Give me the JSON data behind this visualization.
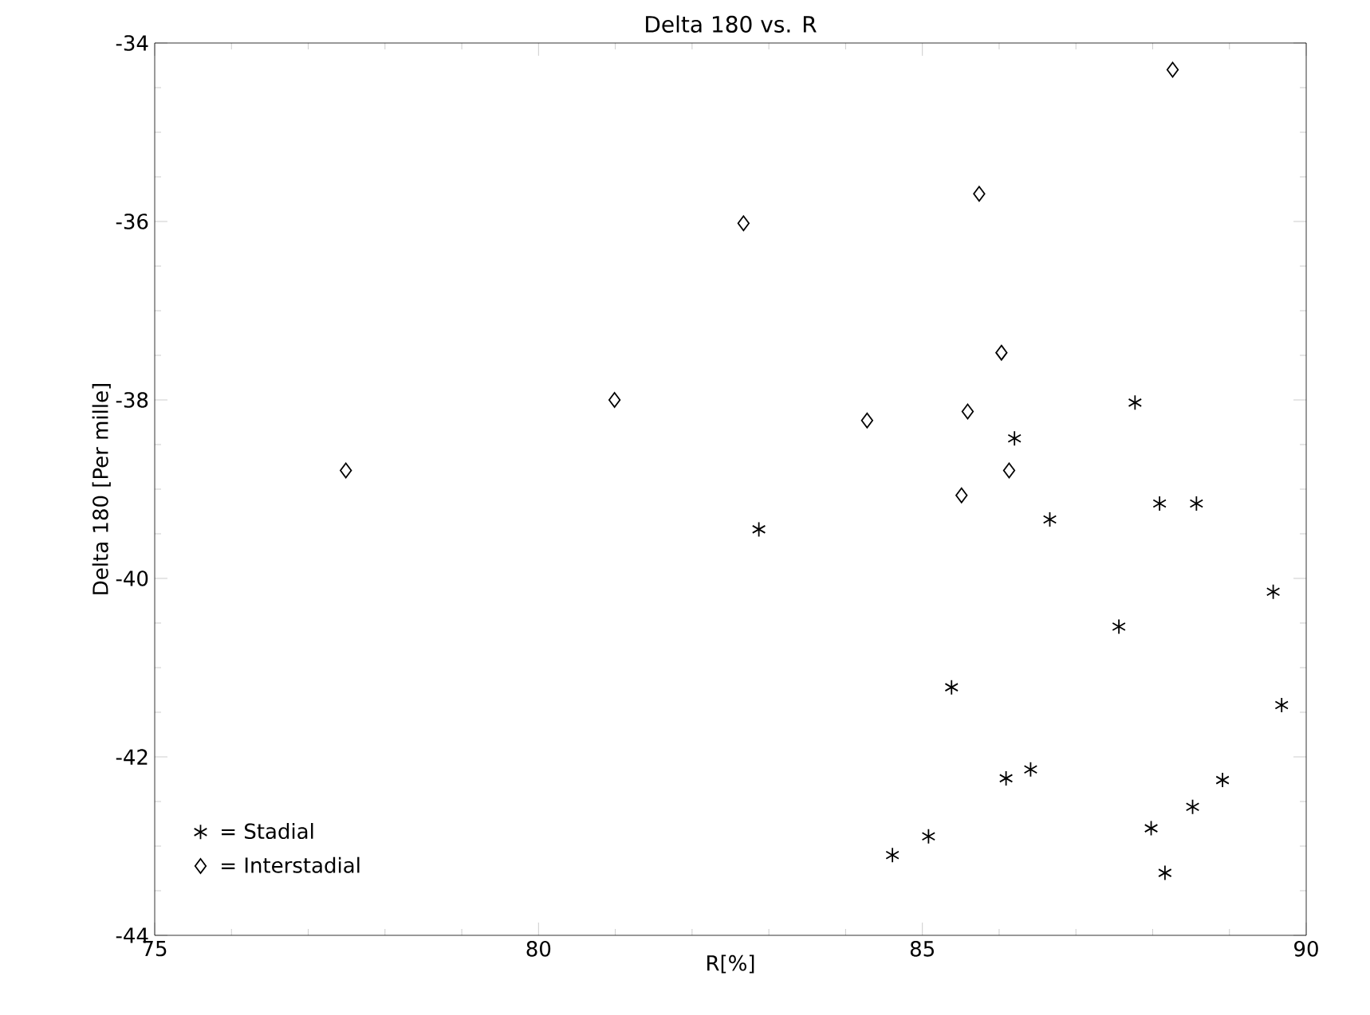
{
  "chart_data": {
    "type": "scatter",
    "title": "Delta 180 vs. R",
    "xlabel": "R[%]",
    "ylabel": "Delta 180 [Per mille]",
    "xlim": [
      75,
      90
    ],
    "xticks": [
      75,
      80,
      85,
      90
    ],
    "ylim": [
      -44,
      -34
    ],
    "yticks": [
      -44,
      -42,
      -40,
      -38,
      -36,
      -34
    ],
    "grid": false,
    "legend": "bottom left",
    "series": [
      {
        "name": "= Stadial",
        "color": "#000000",
        "marker": "cross",
        "x": [
          82.87,
          87.77,
          86.2,
          88.09,
          88.57,
          86.66,
          89.57,
          87.56,
          85.38,
          89.68,
          86.41,
          86.09,
          88.91,
          88.52,
          87.98,
          85.08,
          84.61,
          88.16
        ],
        "values": [
          -39.45,
          -38.03,
          -38.43,
          -39.16,
          -39.16,
          -39.34,
          -40.15,
          -40.54,
          -41.22,
          -41.42,
          -42.14,
          -42.24,
          -42.26,
          -42.56,
          -42.8,
          -42.89,
          -43.1,
          -43.3
        ]
      },
      {
        "name": "= Interstadial",
        "color": "#000000",
        "marker": "diamond",
        "x": [
          77.49,
          80.99,
          82.67,
          84.28,
          85.51,
          85.59,
          85.74,
          86.03,
          86.13,
          88.26
        ],
        "values": [
          -38.79,
          -38.0,
          -36.02,
          -38.23,
          -39.07,
          -38.13,
          -35.69,
          -37.47,
          -38.79,
          -34.3
        ]
      }
    ]
  }
}
